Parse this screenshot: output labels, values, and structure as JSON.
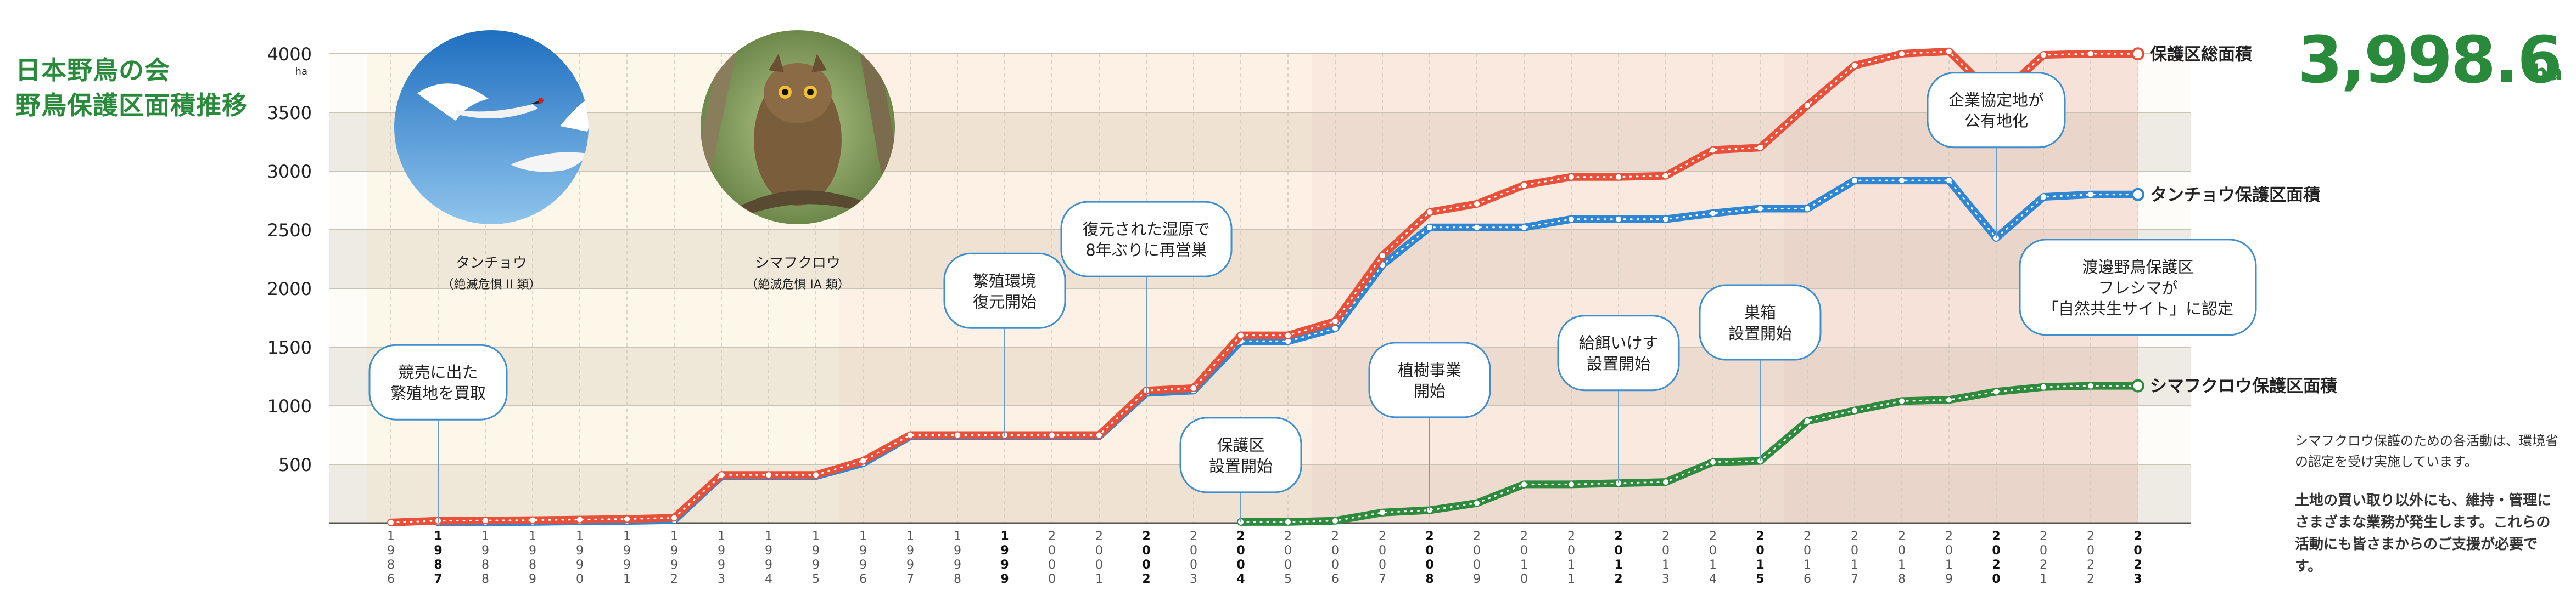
{
  "title": {
    "line1": "日本野鳥の会",
    "line2": "野鳥保護区面積推移"
  },
  "total_area": {
    "value": "3,998.6",
    "unit": "ha"
  },
  "photos": [
    {
      "id": "tancho",
      "name": "タンチョウ",
      "status": "（絶滅危惧 II 類）",
      "icon": "red-crowned-crane-photo"
    },
    {
      "id": "shimafukuro",
      "name": "シマフクロウ",
      "status": "（絶滅危惧 IA 類）",
      "icon": "blakistons-fish-owl-photo"
    }
  ],
  "notes": {
    "small": "シマフクロウ保護のための各活動は、環境省の認定を受け実施しています。",
    "bold": "土地の買い取り以外にも、維持・管理にさまざまな業務が発生します。これらの活動にも皆さまからのご支援が必要です。"
  },
  "chart_data": {
    "type": "line",
    "y_unit": "ha",
    "ylim": [
      0,
      4000
    ],
    "yticks": [
      500,
      1000,
      1500,
      2000,
      2500,
      3000,
      3500,
      4000
    ],
    "x": [
      1986,
      1987,
      1988,
      1989,
      1990,
      1991,
      1992,
      1993,
      1994,
      1995,
      1996,
      1997,
      1998,
      1999,
      2000,
      2001,
      2002,
      2003,
      2004,
      2005,
      2006,
      2007,
      2008,
      2009,
      2010,
      2011,
      2012,
      2013,
      2014,
      2015,
      2016,
      2017,
      2018,
      2019,
      2020,
      2021,
      2022,
      2023
    ],
    "bold_years": [
      1987,
      1999,
      2002,
      2004,
      2008,
      2012,
      2015,
      2020,
      2023
    ],
    "series": [
      {
        "name": "保護区総面積",
        "color": "#e8503a",
        "values": [
          5,
          20,
          22,
          25,
          30,
          35,
          45,
          410,
          410,
          410,
          530,
          750,
          750,
          750,
          750,
          750,
          1130,
          1150,
          1600,
          1600,
          1720,
          2280,
          2650,
          2720,
          2880,
          2950,
          2950,
          2960,
          3180,
          3200,
          3560,
          3900,
          4000,
          4020,
          3620,
          3990,
          4000,
          3998.6
        ]
      },
      {
        "name": "タンチョウ保護区面積",
        "color": "#2f86d2",
        "values": [
          null,
          5,
          8,
          10,
          15,
          18,
          25,
          400,
          400,
          400,
          510,
          740,
          740,
          740,
          740,
          740,
          1110,
          1130,
          1550,
          1550,
          1660,
          2200,
          2520,
          2520,
          2520,
          2590,
          2590,
          2590,
          2640,
          2680,
          2680,
          2920,
          2920,
          2920,
          2430,
          2780,
          2800,
          2800
        ]
      },
      {
        "name": "シマフクロウ保護区面積",
        "color": "#2e8b3e",
        "values": [
          null,
          null,
          null,
          null,
          null,
          null,
          null,
          null,
          null,
          null,
          null,
          null,
          null,
          null,
          null,
          null,
          null,
          null,
          10,
          10,
          20,
          90,
          110,
          170,
          330,
          330,
          340,
          350,
          520,
          530,
          870,
          960,
          1040,
          1050,
          1120,
          1160,
          1170,
          1170
        ]
      }
    ],
    "annotations": [
      {
        "year": 1987,
        "y": 1200,
        "text": [
          "競売に出た",
          "繁殖地を買取"
        ]
      },
      {
        "year": 1999,
        "y": 1980,
        "text": [
          "繁殖環境",
          "復元開始"
        ]
      },
      {
        "year": 2002,
        "y": 2420,
        "text": [
          "復元された湿原で",
          "8年ぶりに再営巣"
        ]
      },
      {
        "year": 2004,
        "y": 580,
        "text": [
          "保護区",
          "設置開始"
        ]
      },
      {
        "year": 2008,
        "y": 1220,
        "text": [
          "植樹事業",
          "開始"
        ]
      },
      {
        "year": 2012,
        "y": 1450,
        "text": [
          "給餌いけす",
          "設置開始"
        ]
      },
      {
        "year": 2015,
        "y": 1710,
        "text": [
          "巣箱",
          "設置開始"
        ]
      },
      {
        "year": 2020,
        "y": 3520,
        "text": [
          "企業協定地が",
          "公有地化"
        ]
      },
      {
        "year": 2023,
        "y": 2010,
        "text": [
          "渡邊野鳥保護区",
          "フレシマが",
          "「自然共生サイト」に認定"
        ]
      }
    ]
  }
}
